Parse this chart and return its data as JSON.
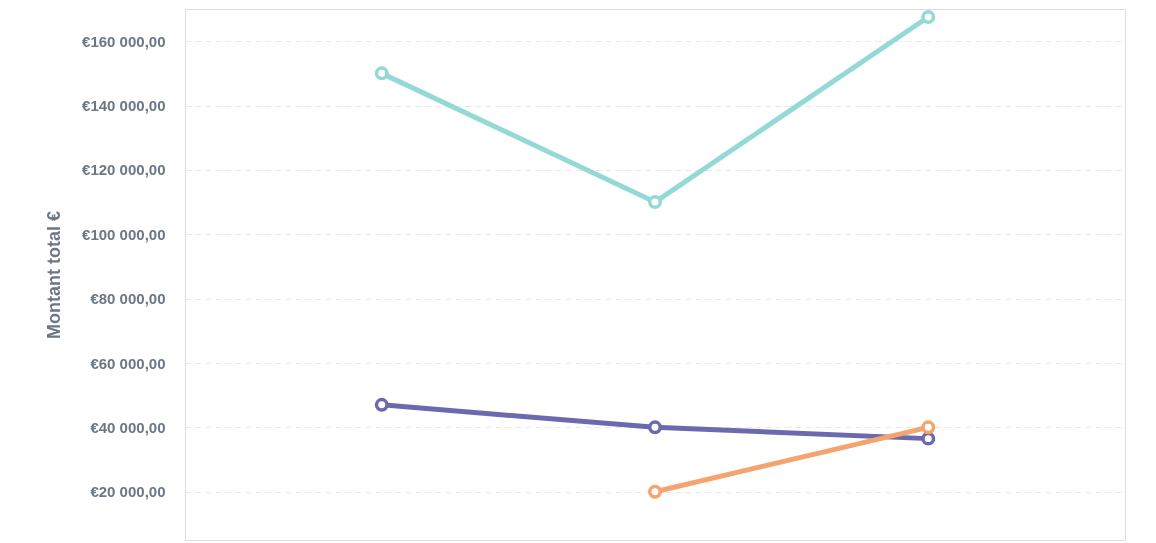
{
  "chart_data": {
    "type": "line",
    "ylabel": "Montant total €",
    "categories": [
      null,
      null,
      null
    ],
    "series": [
      {
        "color": "#94d9d6",
        "values": [
          150000,
          110000,
          167500
        ]
      },
      {
        "color": "#6c6aae",
        "values": [
          47000,
          40000,
          36500
        ]
      },
      {
        "color": "#f4a46c",
        "values": [
          null,
          20000,
          40000
        ]
      }
    ],
    "ylim": [
      5000,
      170000
    ],
    "yticks": [
      {
        "value": 20000,
        "label": "€20 000,00"
      },
      {
        "value": 40000,
        "label": "€40 000,00"
      },
      {
        "value": 60000,
        "label": "€60 000,00"
      },
      {
        "value": 80000,
        "label": "€80 000,00"
      },
      {
        "value": 100000,
        "label": "€100 000,00"
      },
      {
        "value": 120000,
        "label": "€120 000,00"
      },
      {
        "value": 140000,
        "label": "€140 000,00"
      },
      {
        "value": 160000,
        "label": "€160 000,00"
      }
    ],
    "grid": "y",
    "tick_labels": "y",
    "marker": "circle",
    "line_style": "solid"
  }
}
